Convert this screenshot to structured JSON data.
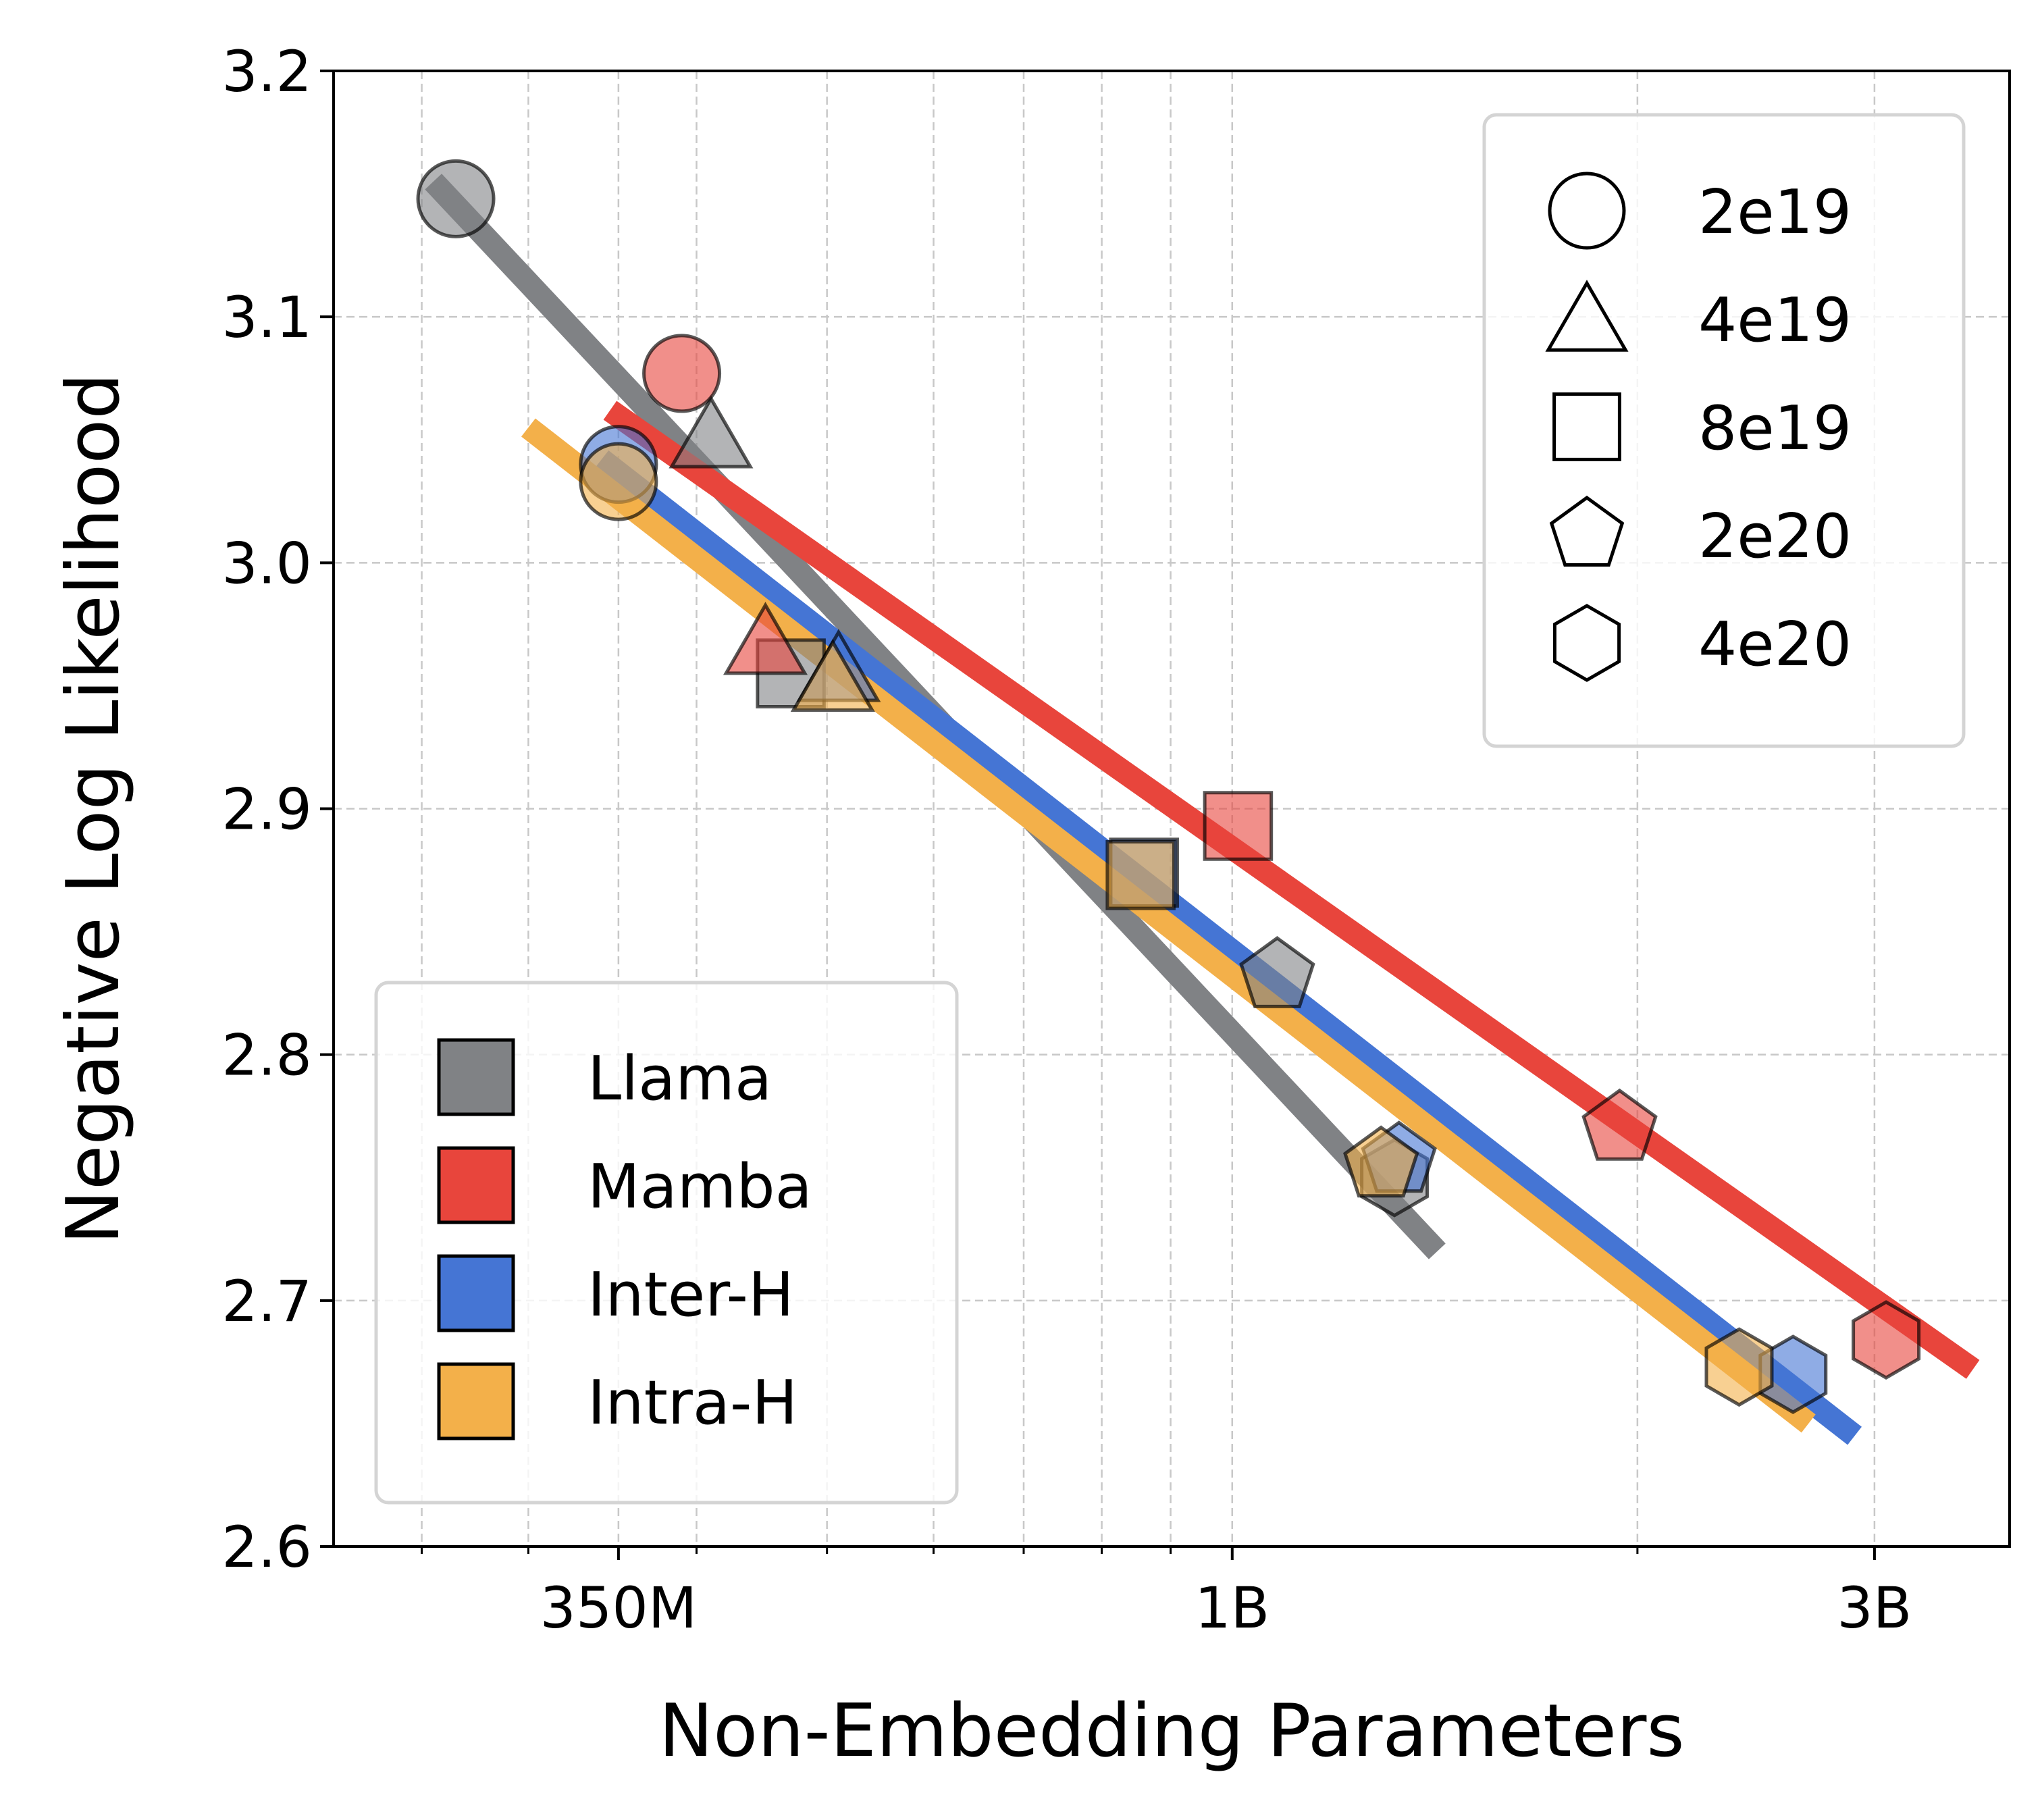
{
  "chart_data": {
    "type": "scatter",
    "xlabel": "Non-Embedding Parameters",
    "ylabel": "Negative Log Likelihood",
    "x_scale": "log",
    "xlim": [
      215000000,
      3780000000
    ],
    "ylim": [
      2.6,
      3.2
    ],
    "x_ticks": [
      {
        "value": 350000000,
        "label": "350M"
      },
      {
        "value": 1000000000,
        "label": "1B"
      },
      {
        "value": 3000000000,
        "label": "3B"
      }
    ],
    "x_minor_ticks": [
      250000000,
      300000000,
      400000000,
      500000000,
      600000000,
      700000000,
      800000000,
      900000000,
      2000000000
    ],
    "y_ticks": [
      {
        "value": 2.6,
        "label": "2.6"
      },
      {
        "value": 2.7,
        "label": "2.7"
      },
      {
        "value": 2.8,
        "label": "2.8"
      },
      {
        "value": 2.9,
        "label": "2.9"
      },
      {
        "value": 3.0,
        "label": "3.0"
      },
      {
        "value": 3.1,
        "label": "3.1"
      },
      {
        "value": 3.2,
        "label": "3.2"
      }
    ],
    "grid": true,
    "compute_budgets": [
      {
        "name": "2e19",
        "marker": "circle"
      },
      {
        "name": "4e19",
        "marker": "triangle"
      },
      {
        "name": "8e19",
        "marker": "square"
      },
      {
        "name": "2e20",
        "marker": "pentagon"
      },
      {
        "name": "4e20",
        "marker": "hexagon"
      }
    ],
    "series": [
      {
        "name": "Llama",
        "color": "#808285",
        "fit": {
          "x": [
            255000000,
            1420000000
          ],
          "y": [
            3.155,
            2.72
          ]
        },
        "points": [
          {
            "x": 265000000,
            "y": 3.148,
            "budget": "2e19"
          },
          {
            "x": 410000000,
            "y": 3.052,
            "budget": "4e19"
          },
          {
            "x": 470000000,
            "y": 2.955,
            "budget": "8e19"
          },
          {
            "x": 1080000000,
            "y": 2.832,
            "budget": "2e20"
          },
          {
            "x": 1320000000,
            "y": 2.75,
            "budget": "4e20"
          }
        ]
      },
      {
        "name": "Mamba",
        "color": "#E8453C",
        "fit": {
          "x": [
            345000000,
            3550000000
          ],
          "y": [
            3.062,
            2.672
          ]
        },
        "points": [
          {
            "x": 390000000,
            "y": 3.077,
            "budget": "2e19"
          },
          {
            "x": 450000000,
            "y": 2.968,
            "budget": "4e19"
          },
          {
            "x": 1010000000,
            "y": 2.893,
            "budget": "8e19"
          },
          {
            "x": 1940000000,
            "y": 2.77,
            "budget": "2e20"
          },
          {
            "x": 3060000000,
            "y": 2.684,
            "budget": "4e20"
          }
        ]
      },
      {
        "name": "Inter-H",
        "color": "#4575D4",
        "fit": {
          "x": [
            340000000,
            2900000000
          ],
          "y": [
            3.042,
            2.645
          ]
        },
        "points": [
          {
            "x": 350000000,
            "y": 3.04,
            "budget": "2e19"
          },
          {
            "x": 510000000,
            "y": 2.957,
            "budget": "4e19"
          },
          {
            "x": 860000000,
            "y": 2.874,
            "budget": "8e19"
          },
          {
            "x": 1330000000,
            "y": 2.757,
            "budget": "2e20"
          },
          {
            "x": 2610000000,
            "y": 2.67,
            "budget": "4e20"
          }
        ]
      },
      {
        "name": "Intra-H",
        "color": "#F3B04A",
        "fit": {
          "x": [
            300000000,
            2680000000
          ],
          "y": [
            3.055,
            2.65
          ]
        },
        "points": [
          {
            "x": 350000000,
            "y": 3.033,
            "budget": "2e19"
          },
          {
            "x": 505000000,
            "y": 2.953,
            "budget": "4e19"
          },
          {
            "x": 855000000,
            "y": 2.873,
            "budget": "8e19"
          },
          {
            "x": 1290000000,
            "y": 2.755,
            "budget": "2e20"
          },
          {
            "x": 2380000000,
            "y": 2.673,
            "budget": "4e20"
          }
        ]
      }
    ],
    "legends": {
      "budget_legend": {
        "position": "top-right",
        "items": [
          "2e19",
          "4e19",
          "8e19",
          "2e20",
          "4e20"
        ]
      },
      "model_legend": {
        "position": "lower-left",
        "items": [
          "Llama",
          "Mamba",
          "Inter-H",
          "Intra-H"
        ]
      }
    }
  }
}
